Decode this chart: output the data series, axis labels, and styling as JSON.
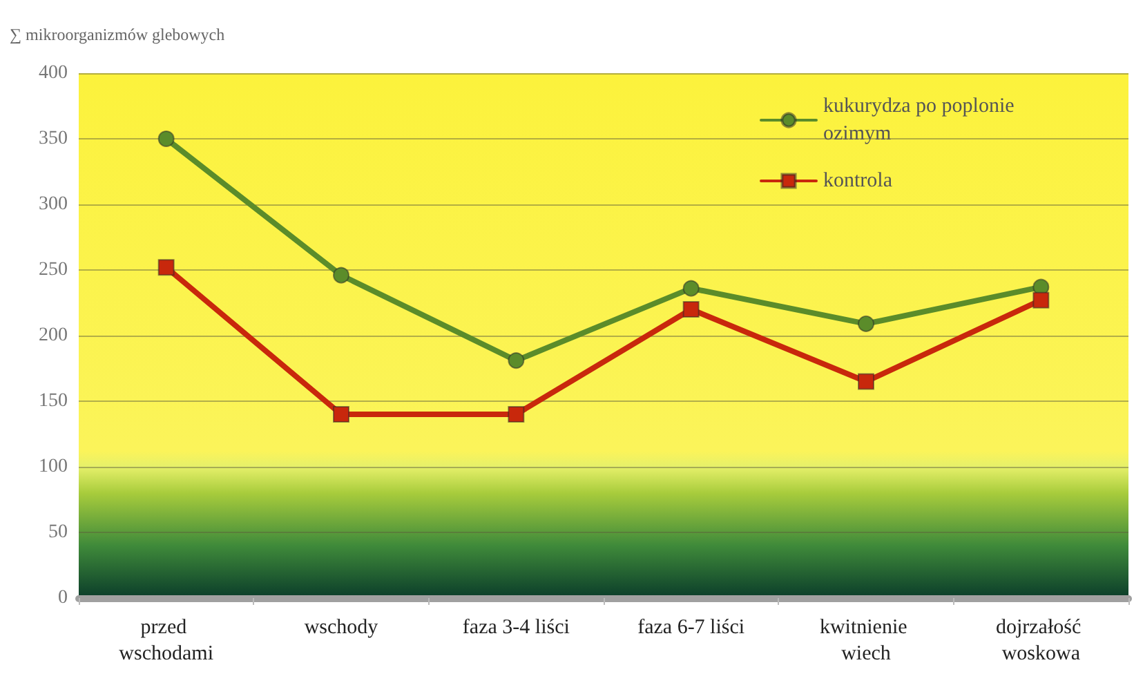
{
  "chart_data": {
    "type": "line",
    "ylabel": "∑ mikroorganizmów glebowych",
    "categories": [
      "przed wschodami",
      "wschody",
      "faza 3-4 liści",
      "faza 6-7 liści",
      "kwitnienie wiech",
      "dojrzałość woskowa"
    ],
    "series": [
      {
        "name": "kukurydza po poplonie ozimym",
        "color": "#5b8c2a",
        "marker": "circle",
        "values": [
          350,
          246,
          181,
          236,
          209,
          237
        ]
      },
      {
        "name": "kontrola",
        "color": "#c8280c",
        "marker": "square",
        "values": [
          252,
          140,
          140,
          220,
          165,
          227
        ]
      }
    ],
    "ylim": [
      0,
      400
    ],
    "yticks": [
      0,
      50,
      100,
      150,
      200,
      250,
      300,
      350,
      400
    ],
    "grid": "y",
    "legend": "top right"
  }
}
